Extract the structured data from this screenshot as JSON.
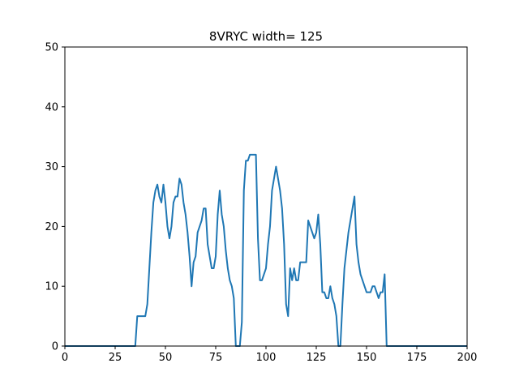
{
  "chart_data": {
    "type": "line",
    "title": "8VRYC width= 125",
    "xlabel": "",
    "ylabel": "",
    "xlim": [
      0,
      200
    ],
    "ylim": [
      0,
      50
    ],
    "xticks": [
      0,
      25,
      50,
      75,
      100,
      125,
      150,
      175,
      200
    ],
    "yticks": [
      0,
      10,
      20,
      30,
      40,
      50
    ],
    "grid": false,
    "line_color": "#1f77b4",
    "series": [
      {
        "x": [
          0,
          35,
          36,
          37,
          38,
          39,
          40,
          41,
          42,
          43,
          44,
          45,
          46,
          47,
          48,
          49,
          50,
          51,
          52,
          53,
          54,
          55,
          56,
          57,
          58,
          59,
          60,
          61,
          62,
          63,
          64,
          65,
          66,
          67,
          68,
          69,
          70,
          71,
          72,
          73,
          74,
          75,
          76,
          77,
          78,
          79,
          80,
          81,
          82,
          83,
          84,
          85,
          86,
          87,
          88,
          89,
          90,
          91,
          92,
          93,
          94,
          95,
          96,
          97,
          98,
          99,
          100,
          101,
          102,
          103,
          104,
          105,
          106,
          107,
          108,
          109,
          110,
          111,
          112,
          113,
          114,
          115,
          116,
          117,
          118,
          119,
          120,
          121,
          122,
          123,
          124,
          125,
          126,
          127,
          128,
          129,
          130,
          131,
          132,
          133,
          134,
          135,
          136,
          137,
          138,
          139,
          140,
          141,
          142,
          143,
          144,
          145,
          146,
          147,
          148,
          149,
          150,
          151,
          152,
          153,
          154,
          155,
          156,
          157,
          158,
          159,
          160,
          200
        ],
        "y": [
          0,
          0,
          5,
          5,
          5,
          5,
          5,
          7,
          13,
          19,
          24,
          26,
          27,
          25,
          24,
          27,
          24,
          20,
          18,
          20,
          24,
          25,
          25,
          28,
          27,
          24,
          22,
          19,
          15,
          10,
          14,
          15,
          19,
          20,
          21,
          23,
          23,
          17,
          15,
          13,
          13,
          15,
          22,
          26,
          22,
          20,
          16,
          13,
          11,
          10,
          8,
          0,
          0,
          0,
          4,
          26,
          31,
          31,
          32,
          32,
          32,
          32,
          18,
          11,
          11,
          12,
          13,
          17,
          20,
          26,
          28,
          30,
          28,
          26,
          23,
          17,
          7,
          5,
          13,
          11,
          13,
          11,
          11,
          14,
          14,
          14,
          14,
          21,
          20,
          19,
          18,
          19,
          22,
          17,
          9,
          9,
          8,
          8,
          10,
          8,
          7,
          5,
          0,
          0,
          7,
          13,
          16,
          19,
          21,
          23,
          25,
          17,
          14,
          12,
          11,
          10,
          9,
          9,
          9,
          10,
          10,
          9,
          8,
          9,
          9,
          12,
          0,
          0
        ]
      }
    ]
  }
}
